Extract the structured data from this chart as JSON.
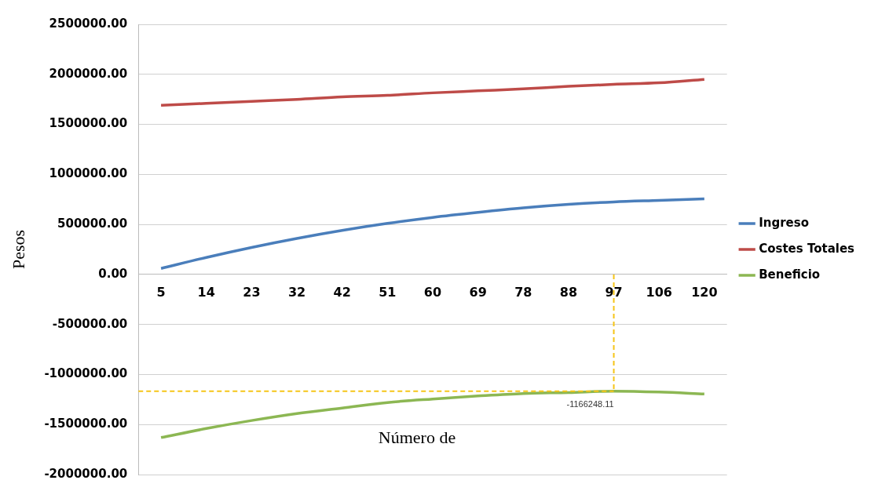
{
  "chart_data": {
    "type": "line",
    "xlabel": "Número de",
    "ylabel": "Pesos",
    "categories": [
      "5",
      "14",
      "23",
      "32",
      "42",
      "51",
      "60",
      "69",
      "78",
      "88",
      "97",
      "106",
      "120"
    ],
    "series": [
      {
        "name": "Ingreso",
        "color": "#4a7ebb",
        "values": [
          60000,
          170000,
          270000,
          360000,
          440000,
          510000,
          570000,
          620000,
          665000,
          700000,
          725000,
          740000,
          755000
        ]
      },
      {
        "name": "Costes Totales",
        "color": "#be4b48",
        "values": [
          1690000,
          1710000,
          1730000,
          1750000,
          1775000,
          1790000,
          1815000,
          1835000,
          1855000,
          1880000,
          1900000,
          1915000,
          1950000
        ]
      },
      {
        "name": "Beneficio",
        "color": "#8cb753",
        "values": [
          -1630000,
          -1540000,
          -1460000,
          -1390000,
          -1335000,
          -1280000,
          -1245000,
          -1215000,
          -1190000,
          -1180000,
          -1166248.11,
          -1175000,
          -1195000
        ]
      }
    ],
    "ylim": [
      -2000000,
      2500000
    ],
    "yticks": [
      {
        "value": -2000000,
        "label": "-2000000.00"
      },
      {
        "value": -1500000,
        "label": "-1500000.00"
      },
      {
        "value": -1000000,
        "label": "-1000000.00"
      },
      {
        "value": -500000,
        "label": "-500000.00"
      },
      {
        "value": 0,
        "label": "0.00"
      },
      {
        "value": 500000,
        "label": "500000.00"
      },
      {
        "value": 1000000,
        "label": "1000000.00"
      },
      {
        "value": 1500000,
        "label": "1500000.00"
      },
      {
        "value": 2000000,
        "label": "2000000.00"
      },
      {
        "value": 2500000,
        "label": "2500000.00"
      }
    ],
    "grid": "y",
    "legend": "right",
    "marker": "none",
    "line_style": "solid",
    "ref_lines": [
      {
        "axis": "x",
        "value": "97",
        "color": "#f5c518",
        "line_style": "dashed"
      },
      {
        "axis": "y",
        "value": -1166248.11,
        "color": "#f5c518",
        "line_style": "dashed"
      }
    ],
    "annotations": [
      {
        "text": "-1166248.11",
        "x": "97",
        "y": -1166248.11
      }
    ]
  }
}
